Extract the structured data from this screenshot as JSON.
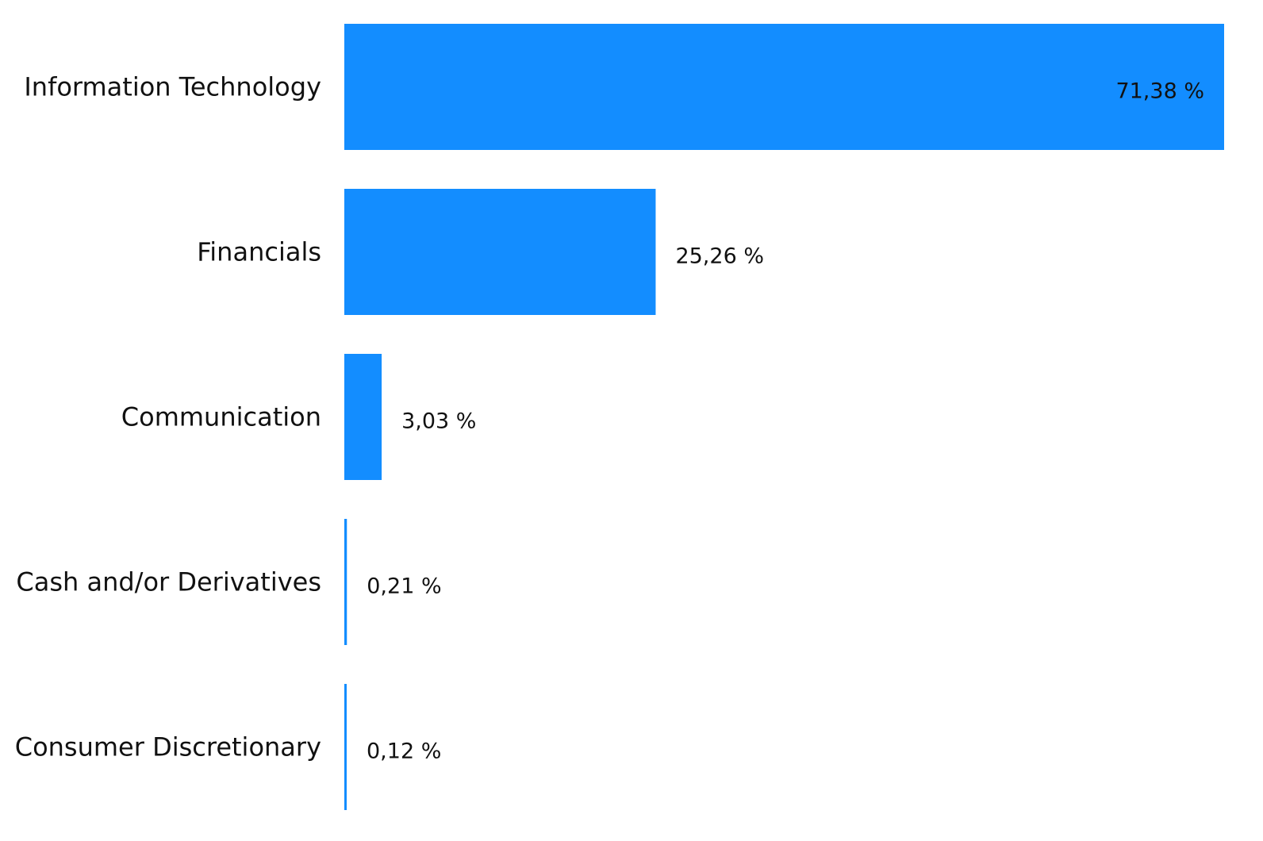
{
  "chart_data": {
    "type": "bar",
    "orientation": "horizontal",
    "title": "",
    "xlabel": "",
    "ylabel": "",
    "categories": [
      "Information Technology",
      "Financials",
      "Communication",
      "Cash and/or Derivatives",
      "Consumer Discretionary"
    ],
    "values": [
      71.38,
      25.26,
      3.03,
      0.21,
      0.12
    ],
    "value_labels": [
      "71,38 %",
      "25,26 %",
      "3,03 %",
      "0,21 %",
      "0,12 %"
    ],
    "xlim": [
      0,
      71.38
    ],
    "grid": false,
    "bar_color": "#138DFF"
  }
}
